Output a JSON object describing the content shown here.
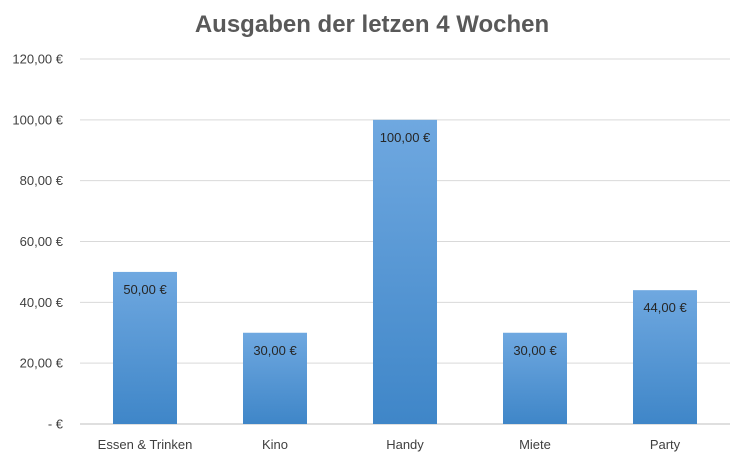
{
  "chart_data": {
    "type": "bar",
    "title": "Ausgaben der letzen 4 Wochen",
    "categories": [
      "Essen & Trinken",
      "Kino",
      "Handy",
      "Miete",
      "Party"
    ],
    "values": [
      50,
      30,
      100,
      30,
      44
    ],
    "data_labels": [
      "50,00 €",
      "30,00 €",
      "100,00 €",
      "30,00 €",
      "44,00 €"
    ],
    "ylim": [
      0,
      120
    ],
    "y_ticks": [
      {
        "value": 0,
        "label": "-   €"
      },
      {
        "value": 20,
        "label": "20,00 €"
      },
      {
        "value": 40,
        "label": "40,00 €"
      },
      {
        "value": 60,
        "label": "60,00 €"
      },
      {
        "value": 80,
        "label": "80,00 €"
      },
      {
        "value": 100,
        "label": "100,00 €"
      },
      {
        "value": 120,
        "label": "120,00 €"
      }
    ],
    "grid": true,
    "legend": "none",
    "bar_color_top": "#6fa8e0",
    "bar_color_bottom": "#3f86c8"
  }
}
